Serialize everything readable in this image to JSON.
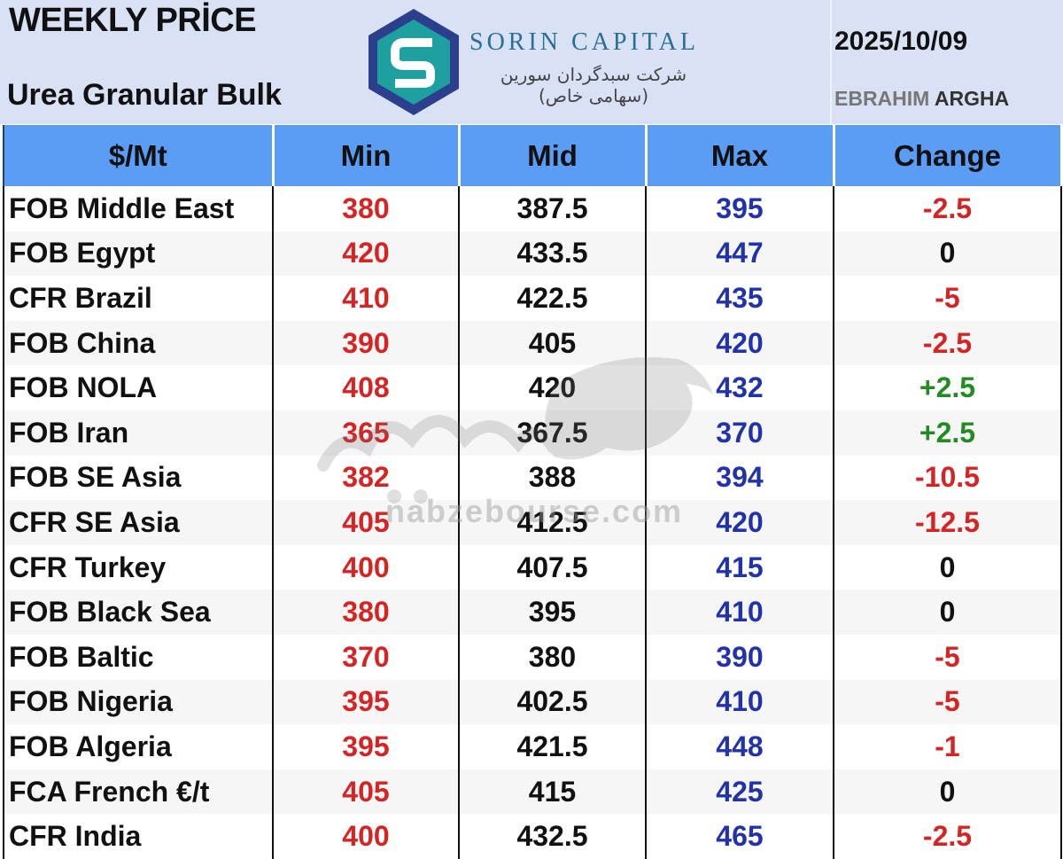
{
  "header": {
    "title": "WEEKLY PRİCE",
    "subtitle": "Urea Granular Bulk",
    "brand_name": "SORIN CAPITAL",
    "brand_name_fa": "شرکت سبدگردان سورین (سهامی خاص)",
    "date": "2025/10/09",
    "author_first": "EBRAHIM",
    "author_last": "ARGHA"
  },
  "table": {
    "columns": [
      "$/Mt",
      "Min",
      "Mid",
      "Max",
      "Change"
    ],
    "rows": [
      {
        "market": "FOB Middle East",
        "min": "380",
        "mid": "387.5",
        "max": "395",
        "change": "-2.5",
        "trend": "neg"
      },
      {
        "market": "FOB Egypt",
        "min": "420",
        "mid": "433.5",
        "max": "447",
        "change": "0",
        "trend": "zero"
      },
      {
        "market": "CFR Brazil",
        "min": "410",
        "mid": "422.5",
        "max": "435",
        "change": "-5",
        "trend": "neg"
      },
      {
        "market": "FOB China",
        "min": "390",
        "mid": "405",
        "max": "420",
        "change": "-2.5",
        "trend": "neg"
      },
      {
        "market": "FOB NOLA",
        "min": "408",
        "mid": "420",
        "max": "432",
        "change": "+2.5",
        "trend": "pos"
      },
      {
        "market": "FOB Iran",
        "min": "365",
        "mid": "367.5",
        "max": "370",
        "change": "+2.5",
        "trend": "pos"
      },
      {
        "market": "FOB SE Asia",
        "min": "382",
        "mid": "388",
        "max": "394",
        "change": "-10.5",
        "trend": "neg"
      },
      {
        "market": "CFR SE Asia",
        "min": "405",
        "mid": "412.5",
        "max": "420",
        "change": "-12.5",
        "trend": "neg"
      },
      {
        "market": "CFR Turkey",
        "min": "400",
        "mid": "407.5",
        "max": "415",
        "change": "0",
        "trend": "zero"
      },
      {
        "market": "FOB Black Sea",
        "min": "380",
        "mid": "395",
        "max": "410",
        "change": "0",
        "trend": "zero"
      },
      {
        "market": "FOB Baltic",
        "min": "370",
        "mid": "380",
        "max": "390",
        "change": "-5",
        "trend": "neg"
      },
      {
        "market": "FOB Nigeria",
        "min": "395",
        "mid": "402.5",
        "max": "410",
        "change": "-5",
        "trend": "neg"
      },
      {
        "market": "FOB Algeria",
        "min": "395",
        "mid": "421.5",
        "max": "448",
        "change": "-1",
        "trend": "neg"
      },
      {
        "market": "FCA French €/t",
        "min": "405",
        "mid": "415",
        "max": "425",
        "change": "0",
        "trend": "zero"
      },
      {
        "market": "CFR India",
        "min": "400",
        "mid": "432.5",
        "max": "465",
        "change": "-2.5",
        "trend": "neg"
      }
    ]
  },
  "watermark": {
    "text_fa": "نبض بورس",
    "url": "nabzebourse.com"
  },
  "colors": {
    "header_bg": "#d9e1f4",
    "column_header_bg": "#5b9cf5",
    "min": "#d42424",
    "max": "#2233aa",
    "change_negative": "#d42424",
    "change_positive": "#228b22",
    "logo_dark": "#2b3f8c",
    "logo_teal": "#1fa0a0"
  }
}
